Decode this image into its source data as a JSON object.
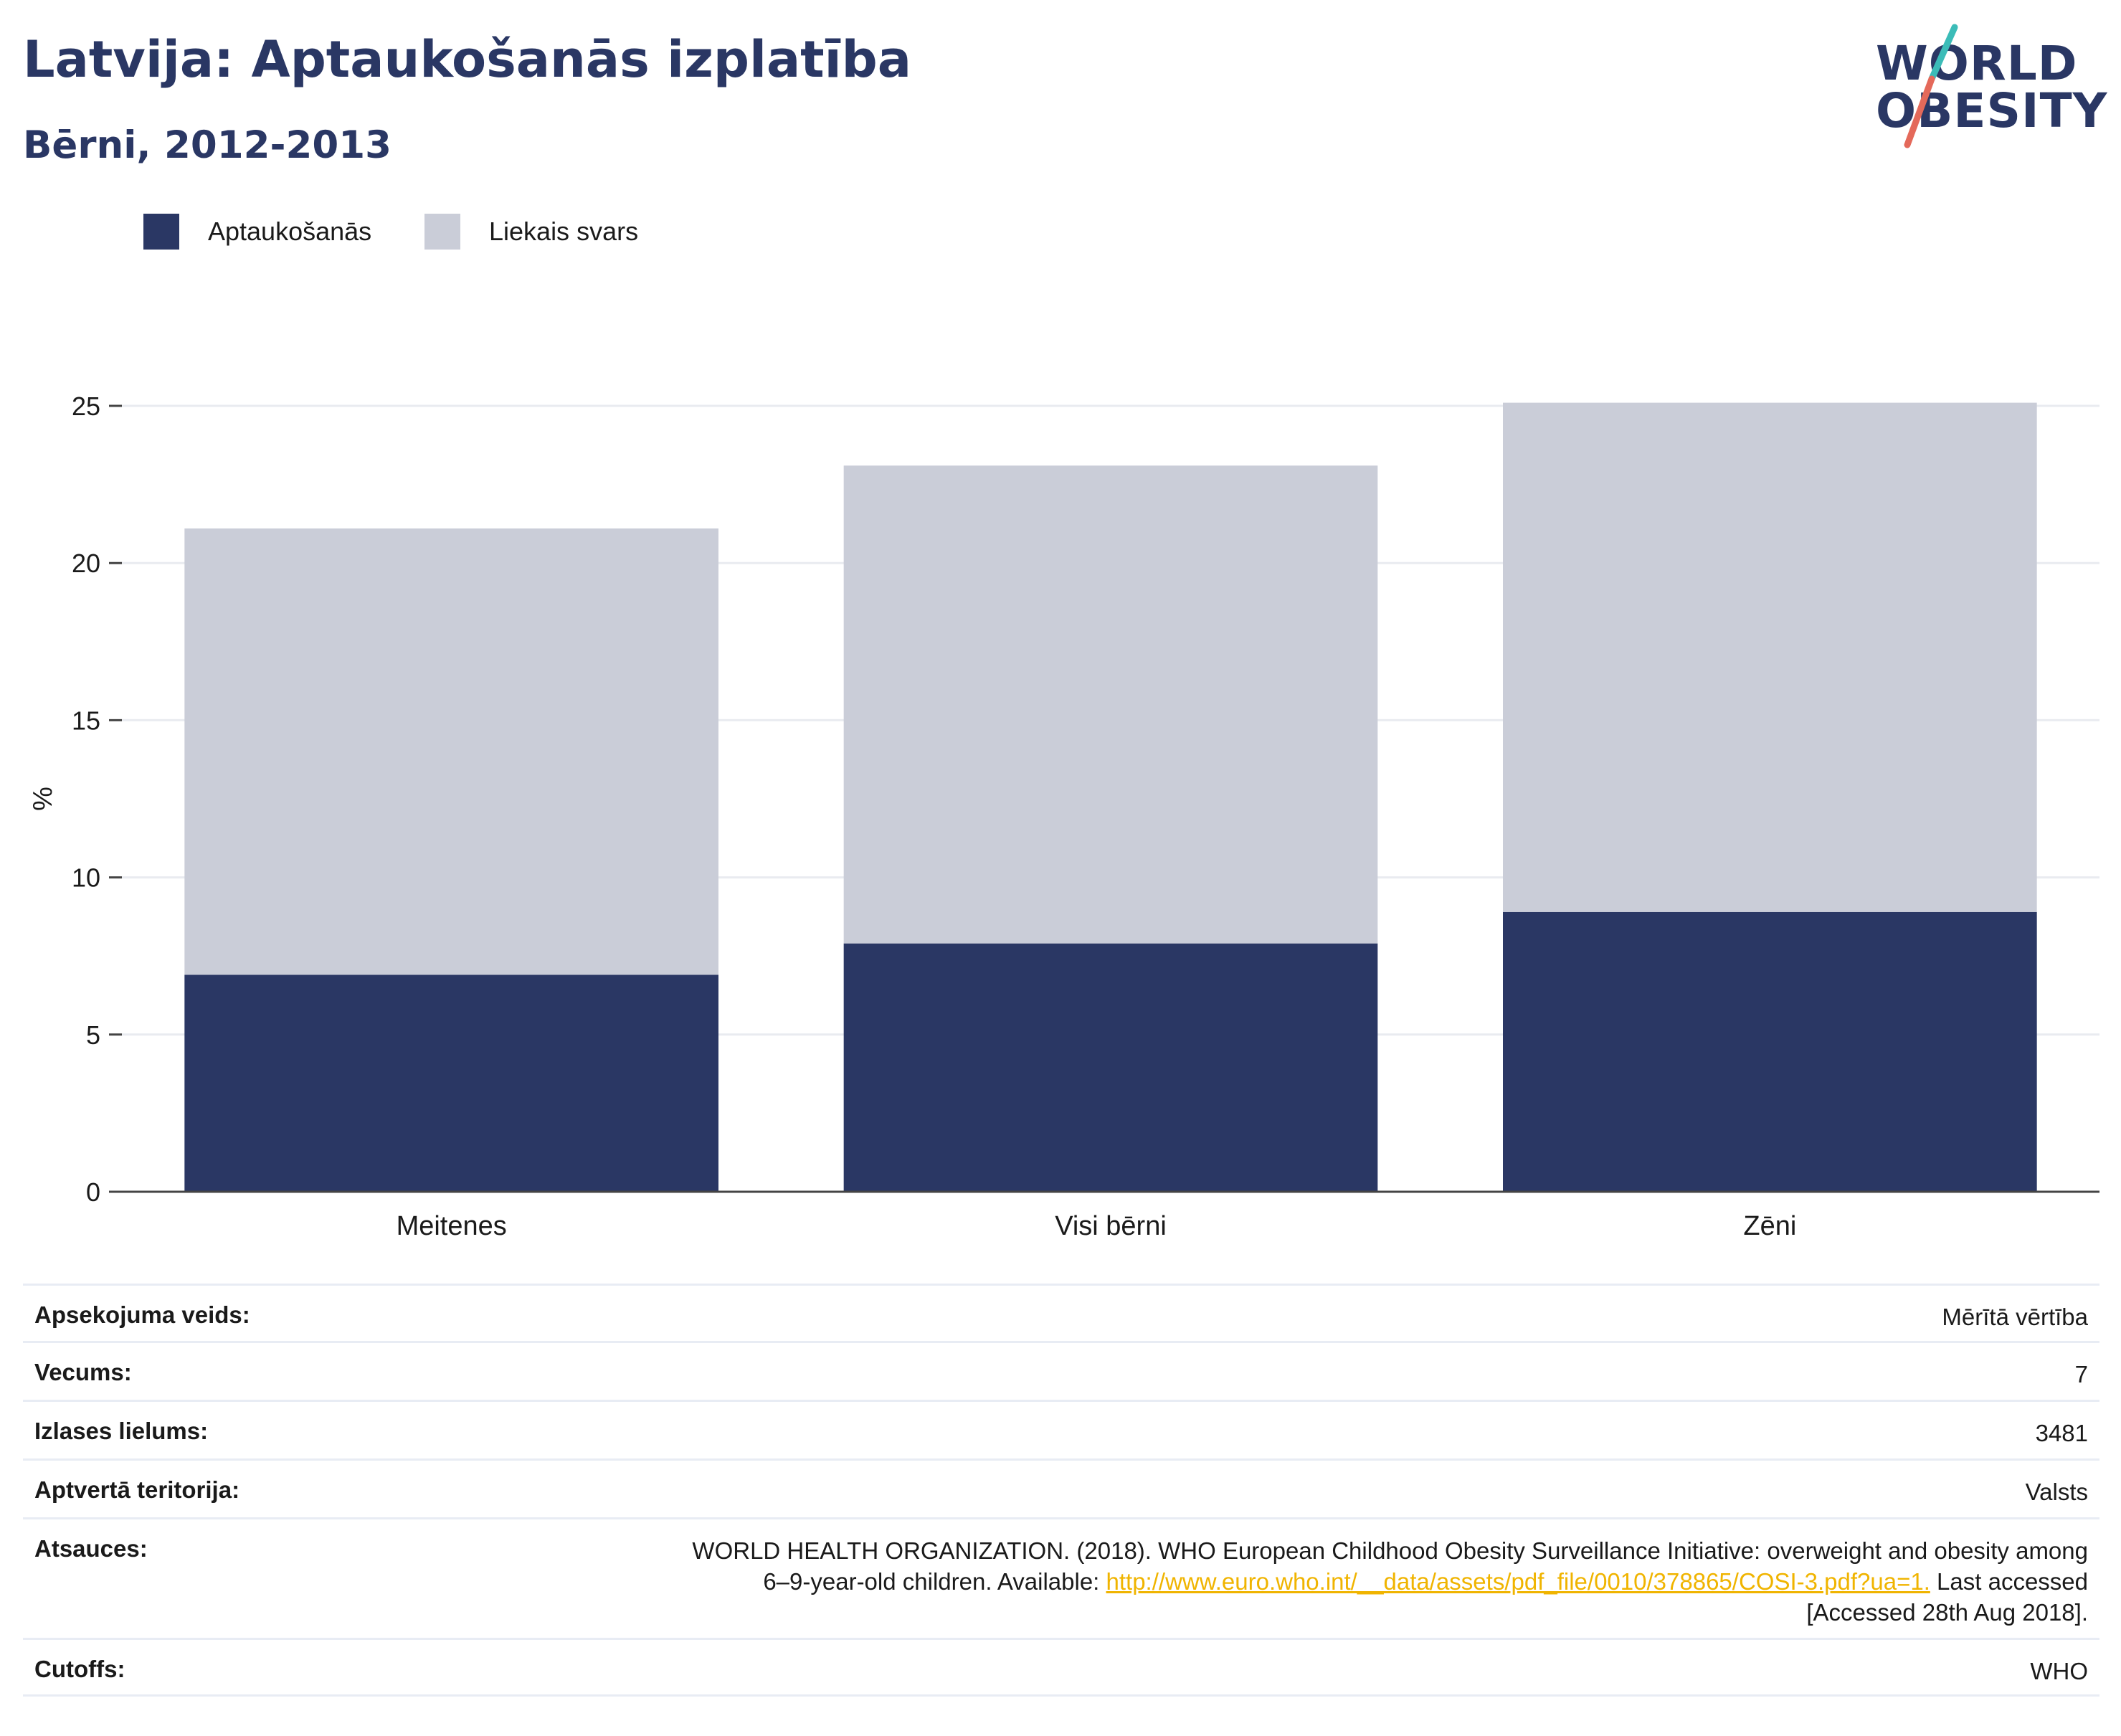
{
  "title": "Latvija: Aptaukošanās izplatība",
  "subtitle": "Bērni, 2012-2013",
  "logo": {
    "line1": "WORLD",
    "line2": "OBESITY",
    "text": "WORLD OBESITY"
  },
  "colors": {
    "obesity": "#2a3764",
    "overweight": "#cacdd8",
    "logo_teal": "#3bbcb8",
    "logo_coral": "#e4695a",
    "link": "#f0b400"
  },
  "legend": {
    "obesity": "Aptaukošanās",
    "overweight": "Liekais svars"
  },
  "chart_data": {
    "type": "bar",
    "stacked": true,
    "categories": [
      "Meitenes",
      "Visi bērni",
      "Zēni"
    ],
    "series": [
      {
        "name": "Aptaukošanās",
        "values": [
          6.9,
          7.9,
          8.9
        ]
      },
      {
        "name": "Liekais svars",
        "values": [
          14.2,
          15.2,
          16.2
        ]
      }
    ],
    "totals": [
      21.1,
      23.1,
      25.1
    ],
    "xlabel": "",
    "ylabel": "%",
    "ylim": [
      0,
      25
    ],
    "yticks": [
      0,
      5,
      10,
      15,
      20,
      25
    ],
    "grid": true,
    "legend_position": "top-left"
  },
  "info": {
    "survey_type": {
      "label": "Apsekojuma veids:",
      "value": "Mērītā vērtība"
    },
    "age": {
      "label": "Vecums:",
      "value": "7"
    },
    "sample_size": {
      "label": "Izlases lielums:",
      "value": "3481"
    },
    "area": {
      "label": "Aptvertā teritorija:",
      "value": "Valsts"
    },
    "references": {
      "label": "Atsauces:",
      "line1": "WORLD HEALTH ORGANIZATION. (2018). WHO European Childhood Obesity Surveillance Initiative: overweight and obesity among",
      "line2_prefix": "6–9-year-old children. Available: ",
      "link": "http://www.euro.who.int/__data/assets/pdf_file/0010/378865/COSI-3.pdf?ua=1.",
      "line2_suffix": " Last accessed",
      "line3": "[Accessed 28th Aug 2018]."
    },
    "cutoffs": {
      "label": "Cutoffs:",
      "value": "WHO"
    }
  }
}
